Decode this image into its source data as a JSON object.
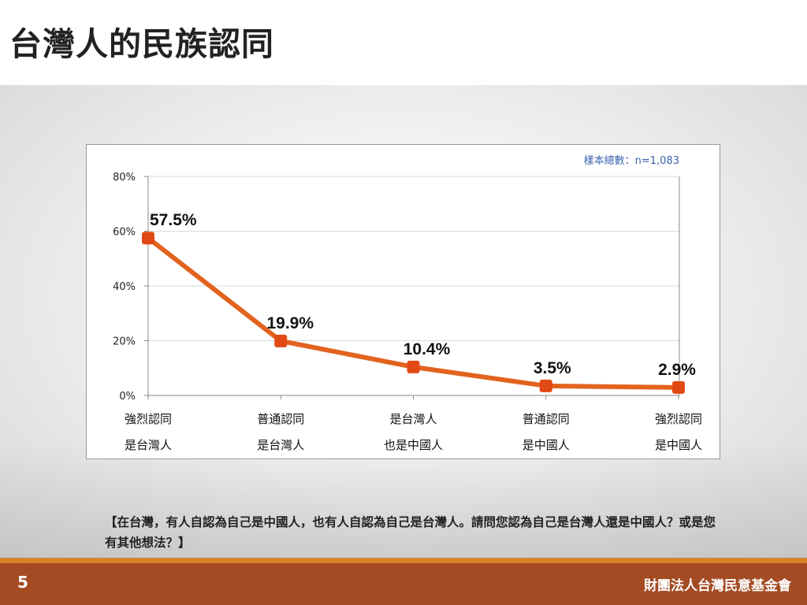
{
  "slide": {
    "title": "台灣人的民族認同",
    "question": "【在台灣，有人自認為自己是中國人，也有人自認為自己是台灣人。請問您認為自己是台灣人還是中國人？或是您有其他想法？】",
    "page_number": "5",
    "organization": "財團法人台灣民意基金會"
  },
  "chart_data": {
    "type": "line",
    "categories": [
      [
        "強烈認同",
        "是台灣人"
      ],
      [
        "普通認同",
        "是台灣人"
      ],
      [
        "是台灣人",
        "也是中國人"
      ],
      [
        "普通認同",
        "是中國人"
      ],
      [
        "強烈認同",
        "是中國人"
      ]
    ],
    "values": [
      57.5,
      19.9,
      10.4,
      3.5,
      2.9
    ],
    "data_labels": [
      "57.5%",
      "19.9%",
      "10.4%",
      "3.5%",
      "2.9%"
    ],
    "ylim": [
      0,
      80
    ],
    "yticks": [
      0,
      20,
      40,
      60,
      80
    ],
    "ytick_labels": [
      "0%",
      "20%",
      "40%",
      "60%",
      "80%"
    ],
    "sample_note": "樣本總數：n=1,083",
    "grid": true,
    "line_color": "#e2631f",
    "marker_color": "#e24a14"
  }
}
